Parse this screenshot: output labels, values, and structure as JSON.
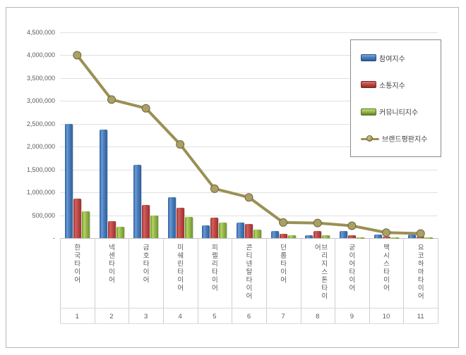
{
  "chart_data": {
    "type": "bar",
    "subtype": "grouped-bars-with-line-overlay",
    "title": "",
    "categories": [
      "한국타이어",
      "넥센타이어",
      "금호타이어",
      "미쉐린타이어",
      "피렐리타이어",
      "콘티넨탈타이어",
      "던롭타이어",
      "브리지스톤타이어",
      "굳이어타이어",
      "맥시스타이어",
      "요코하마타이어"
    ],
    "category_ranks": [
      "1",
      "2",
      "3",
      "4",
      "5",
      "6",
      "7",
      "8",
      "9",
      "10",
      "11"
    ],
    "series": [
      {
        "name": "참여지수",
        "type": "bar",
        "color": "#4a7ebb",
        "values": [
          2500000,
          2380000,
          1610000,
          890000,
          280000,
          340000,
          150000,
          70000,
          150000,
          75000,
          75000
        ]
      },
      {
        "name": "소통지수",
        "type": "bar",
        "color": "#be4b48",
        "values": [
          870000,
          370000,
          720000,
          670000,
          450000,
          310000,
          100000,
          150000,
          60000,
          30000,
          35000
        ]
      },
      {
        "name": "커뮤니티지수",
        "type": "bar",
        "color": "#98b954",
        "values": [
          590000,
          240000,
          490000,
          470000,
          340000,
          190000,
          55000,
          60000,
          20000,
          15000,
          12000
        ]
      },
      {
        "name": "브랜드평판지수",
        "type": "line",
        "color": "#9a9055",
        "marker_color": "#aaa065",
        "values": [
          4000000,
          3030000,
          2840000,
          2050000,
          1080000,
          890000,
          340000,
          330000,
          270000,
          120000,
          100000
        ]
      }
    ],
    "y_axis": {
      "min": 0,
      "max": 4500000,
      "step": 500000,
      "tick_labels": [
        "4,500,000",
        "4,000,000",
        "3,500,000",
        "3,000,000",
        "2,500,000",
        "2,000,000",
        "1,500,000",
        "1,000,000",
        "500,000",
        "-"
      ]
    },
    "x_axis": {
      "label_orientation": "vertical-stacked"
    },
    "grid": true,
    "legend_position": "top-right",
    "background": "#ffffff"
  }
}
